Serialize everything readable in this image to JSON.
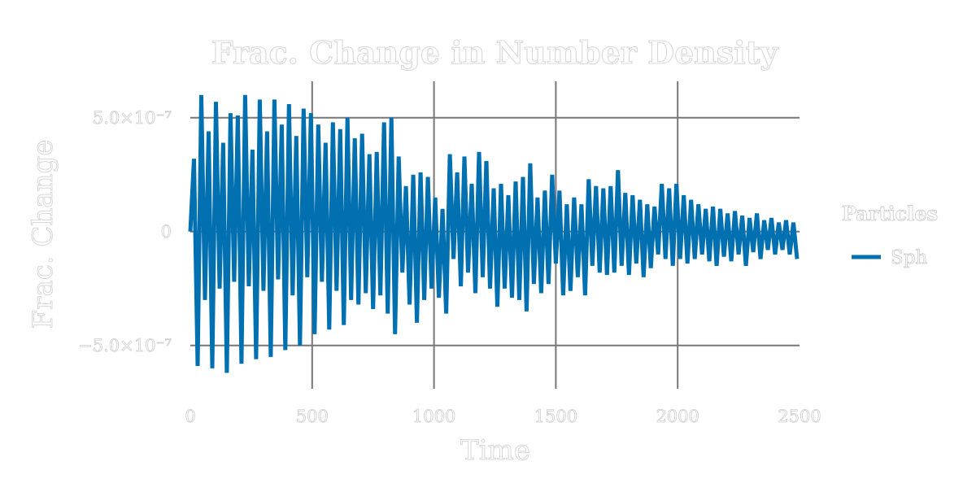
{
  "chart_data": {
    "type": "line",
    "title": "Frac. Change in Number Density",
    "xlabel": "Time",
    "ylabel": "Frac. Change",
    "xlim": [
      0,
      2500
    ],
    "ylim": [
      -6.9e-07,
      6.6e-07
    ],
    "x_ticks": [
      {
        "value": 0,
        "label": "0"
      },
      {
        "value": 500,
        "label": "500"
      },
      {
        "value": 1000,
        "label": "1000"
      },
      {
        "value": 1500,
        "label": "1500"
      },
      {
        "value": 2000,
        "label": "2000"
      },
      {
        "value": 2500,
        "label": "2500"
      }
    ],
    "y_ticks": [
      {
        "value": 5e-07,
        "label": "5.0×10⁻⁷"
      },
      {
        "value": 0,
        "label": "0"
      },
      {
        "value": -5e-07,
        "label": "−5.0×10⁻⁷"
      }
    ],
    "grid": true,
    "legend": {
      "title": "Particles",
      "position": "right"
    },
    "series": [
      {
        "name": "Sph",
        "color": "#0070b0",
        "x": [
          0,
          15,
          30,
          45,
          60,
          75,
          90,
          105,
          120,
          135,
          150,
          165,
          180,
          195,
          210,
          225,
          240,
          255,
          270,
          285,
          300,
          315,
          330,
          345,
          360,
          375,
          390,
          405,
          420,
          435,
          450,
          465,
          480,
          495,
          510,
          525,
          540,
          555,
          570,
          585,
          600,
          615,
          630,
          645,
          660,
          675,
          690,
          705,
          720,
          735,
          750,
          765,
          780,
          795,
          810,
          825,
          840,
          855,
          870,
          885,
          900,
          915,
          930,
          945,
          960,
          975,
          990,
          1005,
          1020,
          1035,
          1050,
          1065,
          1080,
          1095,
          1110,
          1125,
          1140,
          1155,
          1170,
          1185,
          1200,
          1215,
          1230,
          1245,
          1260,
          1275,
          1290,
          1305,
          1320,
          1335,
          1350,
          1365,
          1380,
          1395,
          1410,
          1425,
          1440,
          1455,
          1470,
          1485,
          1500,
          1515,
          1530,
          1545,
          1560,
          1575,
          1590,
          1605,
          1620,
          1635,
          1650,
          1665,
          1680,
          1695,
          1710,
          1725,
          1740,
          1755,
          1770,
          1785,
          1800,
          1815,
          1830,
          1845,
          1860,
          1875,
          1890,
          1905,
          1920,
          1935,
          1950,
          1965,
          1980,
          1995,
          2010,
          2025,
          2040,
          2055,
          2070,
          2085,
          2100,
          2115,
          2130,
          2145,
          2160,
          2175,
          2190,
          2205,
          2220,
          2235,
          2250,
          2265,
          2280,
          2295,
          2310,
          2325,
          2340,
          2355,
          2370,
          2385,
          2400,
          2415,
          2430,
          2445,
          2460,
          2475,
          2490
        ],
        "values": [
          0,
          3.2e-07,
          -5.9e-07,
          6e-07,
          -3e-07,
          4.4e-07,
          -6e-07,
          5.7e-07,
          -2.5e-07,
          3.9e-07,
          -6.2e-07,
          5.2e-07,
          -2.2e-07,
          5.1e-07,
          -5.8e-07,
          6e-07,
          -2.4e-07,
          3.6e-07,
          -5.6e-07,
          5.8e-07,
          -2.6e-07,
          4.4e-07,
          -5.5e-07,
          5.8e-07,
          -2.1e-07,
          4.7e-07,
          -5.2e-07,
          5.6e-07,
          -2.8e-07,
          4.2e-07,
          -5e-07,
          5.4e-07,
          -2e-07,
          5.2e-07,
          -4.5e-07,
          4.7e-07,
          -2.2e-07,
          3.9e-07,
          -4.3e-07,
          4.8e-07,
          -2.6e-07,
          4.5e-07,
          -4.1e-07,
          5e-07,
          -3e-07,
          4.1e-07,
          -3.2e-07,
          4.3e-07,
          -2.7e-07,
          3.4e-07,
          -3.4e-07,
          3.5e-07,
          -2.8e-07,
          4.8e-07,
          -3.6e-07,
          5e-07,
          -4.5e-07,
          3.3e-07,
          -1.8e-07,
          2e-07,
          -3.2e-07,
          2.5e-07,
          -4e-07,
          2.6e-07,
          -3e-07,
          2.4e-07,
          -2.5e-07,
          1.5e-07,
          -2.9e-07,
          1e-07,
          -3.6e-07,
          3.4e-07,
          -1.2e-07,
          2.6e-07,
          -2.4e-07,
          3.3e-07,
          -1.8e-07,
          2.1e-07,
          -2.7e-07,
          3.5e-07,
          -2e-07,
          3.1e-07,
          -2.5e-07,
          1.9e-07,
          -3.3e-07,
          2.1e-07,
          -2.5e-07,
          1.6e-07,
          -2.9e-07,
          2.2e-07,
          -3e-07,
          2.4e-07,
          -3.5e-07,
          3e-07,
          -2.3e-07,
          1.5e-07,
          -2.7e-07,
          1.8e-07,
          -2.3e-07,
          2.5e-07,
          -1.4e-07,
          1.8e-07,
          -2.8e-07,
          1.2e-07,
          -2.6e-07,
          1.5e-07,
          -2e-07,
          1.2e-07,
          -2.8e-07,
          2.3e-07,
          -1.5e-07,
          2e-07,
          -1.8e-07,
          1.9e-07,
          -1.9e-07,
          2e-07,
          -1.8e-07,
          2.7e-07,
          -1.5e-07,
          1.7e-07,
          -1.9e-07,
          1.6e-07,
          -1.4e-07,
          1.4e-07,
          -2e-07,
          1.2e-07,
          -1.6e-07,
          1.1e-07,
          -1e-07,
          2.1e-07,
          -1.2e-07,
          1.9e-07,
          -1.5e-07,
          2.1e-07,
          -1.2e-07,
          1.6e-07,
          -1.4e-07,
          1.4e-07,
          -1.2e-07,
          1.2e-07,
          -1e-07,
          1e-07,
          -1.3e-07,
          1.1e-07,
          -1.5e-07,
          1e-07,
          -1.1e-07,
          8e-08,
          -1.3e-07,
          9e-08,
          -1e-07,
          7e-08,
          -1.5e-07,
          6e-08,
          -9e-08,
          8e-08,
          -1.2e-07,
          5e-08,
          -8e-08,
          6e-08,
          -1e-07,
          4e-08,
          -8e-08,
          5e-08,
          -1e-07,
          4e-08,
          -1.2e-07
        ]
      }
    ]
  }
}
